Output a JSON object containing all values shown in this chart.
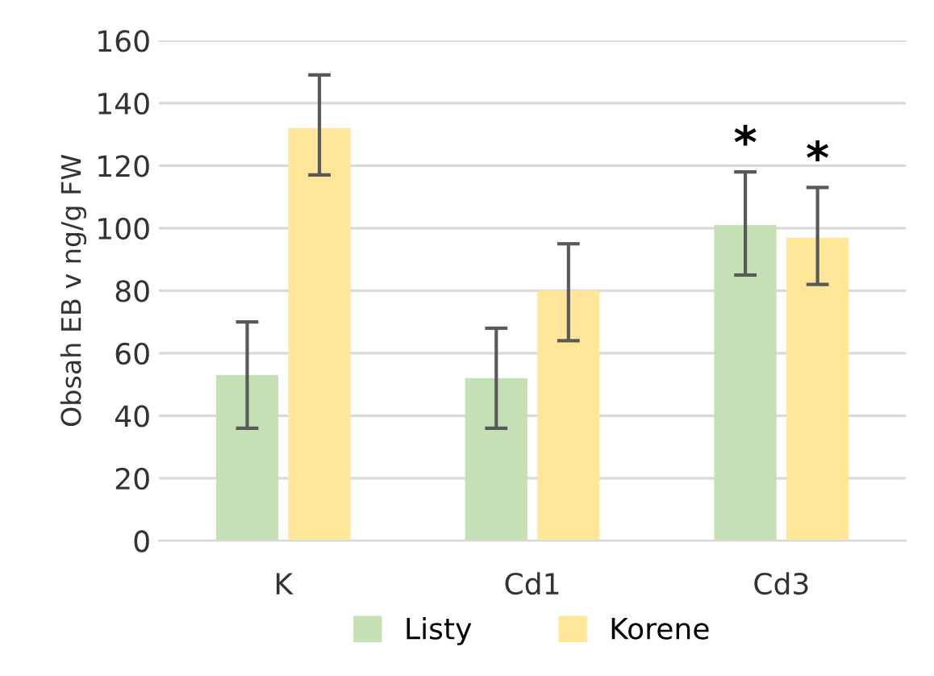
{
  "chart_data": {
    "type": "bar",
    "ylabel": "Obsah EB v ng/g FW",
    "categories": [
      "K",
      "Cd1",
      "Cd3"
    ],
    "series": [
      {
        "name": "Listy",
        "color": "#c5e0b4",
        "values": [
          53,
          52,
          101
        ],
        "errors": [
          [
            36,
            70
          ],
          [
            36,
            68
          ],
          [
            85,
            118
          ]
        ]
      },
      {
        "name": "Korene",
        "color": "#ffe699",
        "values": [
          132,
          80,
          97
        ],
        "errors": [
          [
            117,
            149
          ],
          [
            64,
            95
          ],
          [
            82,
            113
          ]
        ]
      }
    ],
    "ylim": [
      0,
      160
    ],
    "yticks": [
      0,
      20,
      40,
      60,
      80,
      100,
      120,
      140,
      160
    ],
    "grid": "y",
    "legend": "bottom",
    "annotations": [
      "*",
      "*"
    ]
  }
}
